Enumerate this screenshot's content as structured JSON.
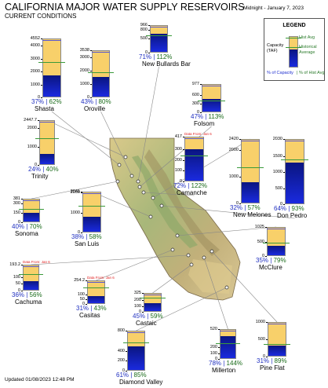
{
  "header": {
    "title": "CALIFORNIA MAJOR WATER SUPPLY RESERVOIRS",
    "subtitle": "CURRENT CONDITIONS",
    "timestamp": "Midnight - January 7, 2023"
  },
  "footer": {
    "updated": "Updated 01/08/2023 12:48 PM"
  },
  "legend": {
    "title": "LEGEND",
    "capacity_label": "Capacity (TAF)",
    "hist_avg_label": "Hist Avg",
    "historical_average_label": "Historical Average",
    "pct_capacity_label": "% of Capacity",
    "pct_hist_avg_label": "| % of Hist Avg"
  },
  "colors": {
    "storage": "#1a2adf",
    "capacity_bar": "#f8d06a",
    "hist_avg_line": "#3a9a3a",
    "pct_capacity_text": "#2030c0",
    "pct_hist_text": "#1a6b1a",
    "data_note": "#e02020"
  },
  "chart_data": {
    "type": "bar",
    "reservoirs": [
      {
        "name": "Shasta",
        "capacity": 4552,
        "ticks": [
          "4552",
          "4000",
          "3000",
          "2000",
          "1000",
          "0"
        ],
        "pct_capacity": "37%",
        "pct_hist_avg": "62%",
        "pct_capacity_value": 37,
        "pct_hist_value": 62
      },
      {
        "name": "Oroville",
        "capacity": 3538,
        "ticks": [
          "3538",
          "3000",
          "2000",
          "1000",
          "0"
        ],
        "pct_capacity": "43%",
        "pct_hist_avg": "80%",
        "pct_capacity_value": 43,
        "pct_hist_value": 80
      },
      {
        "name": "New Bullards Bar",
        "capacity": 966,
        "ticks": [
          "966",
          "800",
          "500",
          "0"
        ],
        "pct_capacity": "71%",
        "pct_hist_avg": "112%",
        "pct_capacity_value": 71,
        "pct_hist_value": 112
      },
      {
        "name": "Folsom",
        "capacity": 977,
        "ticks": [
          "977",
          "600",
          "300",
          "0"
        ],
        "pct_capacity": "47%",
        "pct_hist_avg": "113%",
        "pct_capacity_value": 47,
        "pct_hist_value": 113
      },
      {
        "name": "Trinity",
        "capacity": 2447.7,
        "ticks": [
          "2447.7",
          "2000",
          "1000",
          "0"
        ],
        "pct_capacity": "24%",
        "pct_hist_avg": "40%",
        "pct_capacity_value": 24,
        "pct_hist_value": 40
      },
      {
        "name": "Camanche",
        "capacity": 417,
        "ticks": [
          "417",
          "300",
          "200",
          "100",
          "0"
        ],
        "pct_capacity": "72%",
        "pct_hist_avg": "122%",
        "pct_capacity_value": 72,
        "pct_hist_value": 122,
        "note": "Data From: Jan 6"
      },
      {
        "name": "New Melones",
        "capacity": 2420,
        "ticks": [
          "2420",
          "2000",
          "1000",
          "0"
        ],
        "pct_capacity": "32%",
        "pct_hist_avg": "57%",
        "pct_capacity_value": 32,
        "pct_hist_value": 57
      },
      {
        "name": "Don Pedro",
        "capacity": 2030,
        "ticks": [
          "2030",
          "1500",
          "1000",
          "500",
          "0"
        ],
        "pct_capacity": "64%",
        "pct_hist_avg": "93%",
        "pct_capacity_value": 64,
        "pct_hist_value": 93
      },
      {
        "name": "Sonoma",
        "capacity": 381,
        "ticks": [
          "381",
          "300",
          "150",
          "0"
        ],
        "pct_capacity": "40%",
        "pct_hist_avg": "70%",
        "pct_capacity_value": 40,
        "pct_hist_value": 70
      },
      {
        "name": "San Luis",
        "capacity": 2041,
        "ticks": [
          "2041",
          "2000",
          "1000",
          "0"
        ],
        "pct_capacity": "38%",
        "pct_hist_avg": "58%",
        "pct_capacity_value": 38,
        "pct_hist_value": 58
      },
      {
        "name": "McClure",
        "capacity": 1025,
        "ticks": [
          "1025",
          "500",
          "0"
        ],
        "pct_capacity": "35%",
        "pct_hist_avg": "79%",
        "pct_capacity_value": 35,
        "pct_hist_value": 79
      },
      {
        "name": "Cachuma",
        "capacity": 193.2,
        "ticks": [
          "193.2",
          "100",
          "50",
          "0"
        ],
        "pct_capacity": "36%",
        "pct_hist_avg": "56%",
        "pct_capacity_value": 36,
        "pct_hist_value": 56,
        "note": "Data From: Jan 6"
      },
      {
        "name": "Castaic",
        "capacity": 325,
        "ticks": [
          "325",
          "200",
          "100",
          "0"
        ],
        "pct_capacity": "45%",
        "pct_hist_avg": "59%",
        "pct_capacity_value": 45,
        "pct_hist_value": 59
      },
      {
        "name": "Casitas",
        "capacity": 254.2,
        "ticks": [
          "254.2",
          "100",
          "50",
          "0"
        ],
        "pct_capacity": "31%",
        "pct_hist_avg": "43%",
        "pct_capacity_value": 31,
        "pct_hist_value": 43,
        "note": "Data From: Jan 6"
      },
      {
        "name": "Diamond Valley",
        "capacity": 800,
        "ticks": [
          "800",
          "400",
          "200",
          "0"
        ],
        "pct_capacity": "61%",
        "pct_hist_avg": "85%",
        "pct_capacity_value": 61,
        "pct_hist_value": 85
      },
      {
        "name": "Millerton",
        "capacity": 520,
        "ticks": [
          "520",
          "200",
          "100",
          "0"
        ],
        "pct_capacity": "78%",
        "pct_hist_avg": "144%",
        "pct_capacity_value": 78,
        "pct_hist_value": 144
      },
      {
        "name": "Pine Flat",
        "capacity": 1000,
        "ticks": [
          "1000",
          "500",
          "0"
        ],
        "pct_capacity": "31%",
        "pct_hist_avg": "89%",
        "pct_capacity_value": 31,
        "pct_hist_value": 89
      }
    ]
  }
}
